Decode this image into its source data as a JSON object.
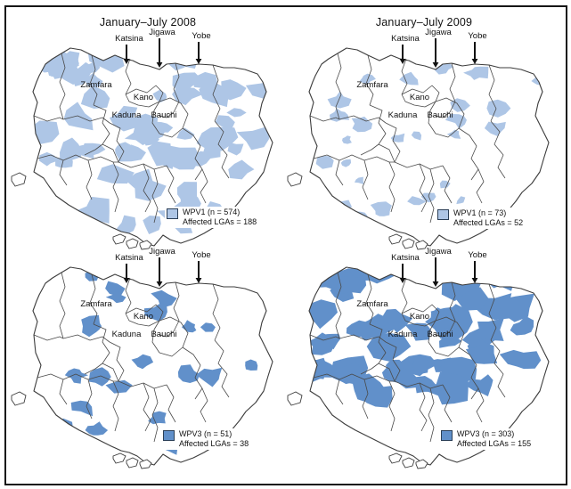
{
  "figure": {
    "panels": [
      {
        "title": "January–July 2008",
        "virus": "WPV1",
        "cases": 574,
        "affected_lgas": 188,
        "legend_line1": "WPV1 (n = 574)",
        "legend_line2": "Affected LGAs = 188",
        "fill": "#aec6e6"
      },
      {
        "title": "January–July 2009",
        "virus": "WPV1",
        "cases": 73,
        "affected_lgas": 52,
        "legend_line1": "WPV1 (n = 73)",
        "legend_line2": "Affected LGAs = 52",
        "fill": "#aec6e6"
      },
      {
        "title": "",
        "virus": "WPV3",
        "cases": 51,
        "affected_lgas": 38,
        "legend_line1": "WPV3 (n = 51)",
        "legend_line2": "Affected LGAs = 38",
        "fill": "#6190ca"
      },
      {
        "title": "",
        "virus": "WPV3",
        "cases": 303,
        "affected_lgas": 155,
        "legend_line1": "WPV3 (n = 303)",
        "legend_line2": "Affected LGAs = 155",
        "fill": "#6190ca"
      }
    ],
    "state_labels": {
      "arrow": [
        "Katsina",
        "Jigawa",
        "Yobe"
      ],
      "inline": [
        "Zamfara",
        "Kano",
        "Kaduna",
        "Bauchi"
      ]
    },
    "colors": {
      "wpv1_fill": "#aec6e6",
      "wpv3_fill": "#6190ca",
      "outline": "#3c3c3c",
      "text": "#111111",
      "frame": "#161616"
    }
  }
}
